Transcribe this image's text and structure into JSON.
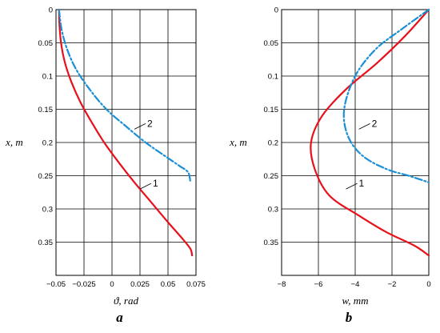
{
  "chart_data": [
    {
      "type": "line",
      "panel_label": "a",
      "xlabel": "ϑ, rad",
      "ylabel": "x, m",
      "xlim": [
        -0.05,
        0.075
      ],
      "ylim": [
        0,
        0.4
      ],
      "y_inverted": true,
      "grid": true,
      "xticks": [
        -0.05,
        -0.025,
        0,
        0.025,
        0.05,
        0.075
      ],
      "xtick_labels": [
        "−0.05",
        "−0.025",
        "0",
        "0.025",
        "0.05",
        "0.075"
      ],
      "yticks": [
        0,
        0.05,
        0.1,
        0.15,
        0.2,
        0.25,
        0.3,
        0.35
      ],
      "ytick_labels": [
        "0",
        "0.05",
        "0.1",
        "0.15",
        "0.2",
        "0.25",
        "0.3",
        "0.35"
      ],
      "series": [
        {
          "name": "1",
          "color": "#e8101a",
          "style": "solid",
          "points": [
            [
              -0.0473,
              0
            ],
            [
              -0.047,
              0.02
            ],
            [
              -0.0455,
              0.05
            ],
            [
              -0.042,
              0.08
            ],
            [
              -0.036,
              0.11
            ],
            [
              -0.028,
              0.14
            ],
            [
              -0.018,
              0.17
            ],
            [
              -0.007,
              0.2
            ],
            [
              0.006,
              0.23
            ],
            [
              0.02,
              0.26
            ],
            [
              0.035,
              0.29
            ],
            [
              0.05,
              0.32
            ],
            [
              0.063,
              0.345
            ],
            [
              0.07,
              0.36
            ],
            [
              0.0715,
              0.37
            ]
          ],
          "label_point": [
            0.025,
            0.27
          ]
        },
        {
          "name": "2",
          "color": "#1a8fd6",
          "style": "dashdot",
          "points": [
            [
              -0.0473,
              0
            ],
            [
              -0.045,
              0.03
            ],
            [
              -0.04,
              0.06
            ],
            [
              -0.032,
              0.09
            ],
            [
              -0.02,
              0.12
            ],
            [
              -0.005,
              0.15
            ],
            [
              0.012,
              0.175
            ],
            [
              0.03,
              0.2
            ],
            [
              0.047,
              0.22
            ],
            [
              0.06,
              0.235
            ],
            [
              0.068,
              0.245
            ],
            [
              0.07,
              0.26
            ]
          ],
          "label_point": [
            0.02,
            0.18
          ]
        }
      ]
    },
    {
      "type": "line",
      "panel_label": "b",
      "xlabel": "w, mm",
      "ylabel": "x, m",
      "xlim": [
        -8,
        0
      ],
      "ylim": [
        0,
        0.4
      ],
      "y_inverted": true,
      "grid": true,
      "xticks": [
        -8,
        -6,
        -4,
        -2,
        0
      ],
      "xtick_labels": [
        "−8",
        "−6",
        "−4",
        "−2",
        "0"
      ],
      "yticks": [
        0,
        0.05,
        0.1,
        0.15,
        0.2,
        0.25,
        0.3,
        0.35
      ],
      "ytick_labels": [
        "0",
        "0.05",
        "0.1",
        "0.15",
        "0.2",
        "0.25",
        "0.3",
        "0.35"
      ],
      "series": [
        {
          "name": "1",
          "color": "#e8101a",
          "style": "solid",
          "points": [
            [
              0,
              0
            ],
            [
              -1.3,
              0.04
            ],
            [
              -2.8,
              0.08
            ],
            [
              -4.5,
              0.12
            ],
            [
              -5.8,
              0.16
            ],
            [
              -6.4,
              0.2
            ],
            [
              -6.2,
              0.24
            ],
            [
              -5.4,
              0.28
            ],
            [
              -3.8,
              0.31
            ],
            [
              -2.3,
              0.335
            ],
            [
              -0.8,
              0.355
            ],
            [
              0,
              0.37
            ]
          ],
          "label_point": [
            -4.5,
            0.27
          ]
        },
        {
          "name": "2",
          "color": "#1a8fd6",
          "style": "dashdot",
          "points": [
            [
              0,
              0
            ],
            [
              -1.5,
              0.03
            ],
            [
              -2.9,
              0.06
            ],
            [
              -4.0,
              0.1
            ],
            [
              -4.6,
              0.15
            ],
            [
              -4.4,
              0.19
            ],
            [
              -3.6,
              0.22
            ],
            [
              -2.3,
              0.24
            ],
            [
              -1.1,
              0.25
            ],
            [
              0,
              0.26
            ]
          ],
          "label_point": [
            -3.8,
            0.18
          ]
        }
      ]
    }
  ]
}
